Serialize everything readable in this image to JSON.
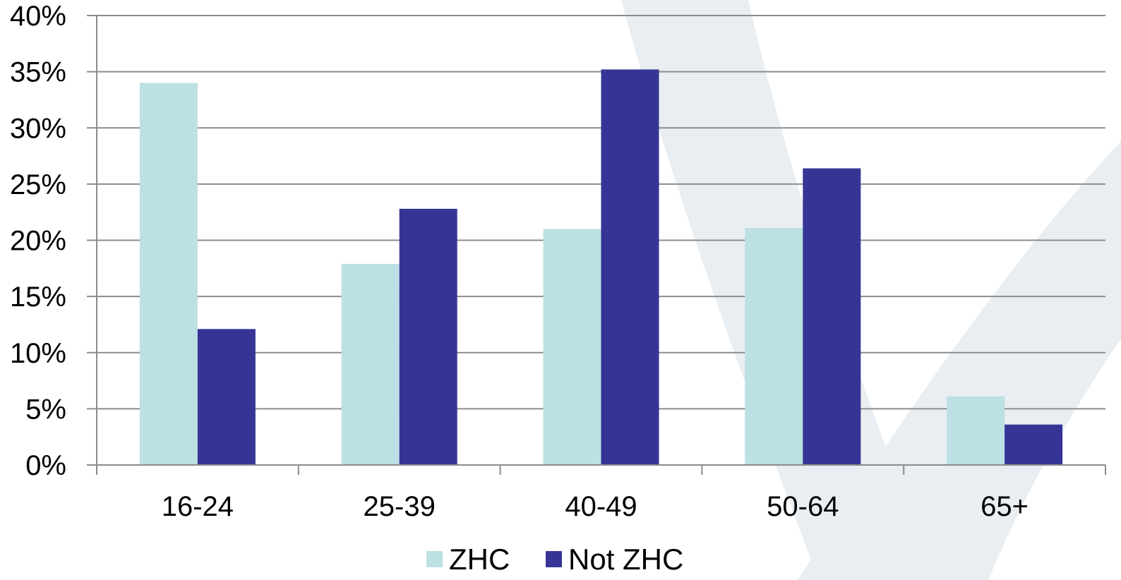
{
  "chart_data": {
    "type": "bar",
    "categories": [
      "16-24",
      "25-39",
      "40-49",
      "50-64",
      "65+"
    ],
    "series": [
      {
        "name": "ZHC",
        "values": [
          34,
          17.9,
          21,
          21.1,
          6.1
        ],
        "color": "#bce0e3"
      },
      {
        "name": "Not ZHC",
        "values": [
          12.1,
          22.8,
          35.2,
          26.4,
          3.6
        ],
        "color": "#363596"
      }
    ],
    "title": "",
    "xlabel": "",
    "ylabel": "",
    "ylim": [
      0,
      40
    ],
    "yticks": [
      0,
      5,
      10,
      15,
      20,
      25,
      30,
      35,
      40
    ],
    "ytick_format": "percent",
    "grid": true,
    "legend_position": "bottom",
    "gridline_color": "#8c8c8c",
    "background_swoosh_color": "#e9eef2"
  }
}
